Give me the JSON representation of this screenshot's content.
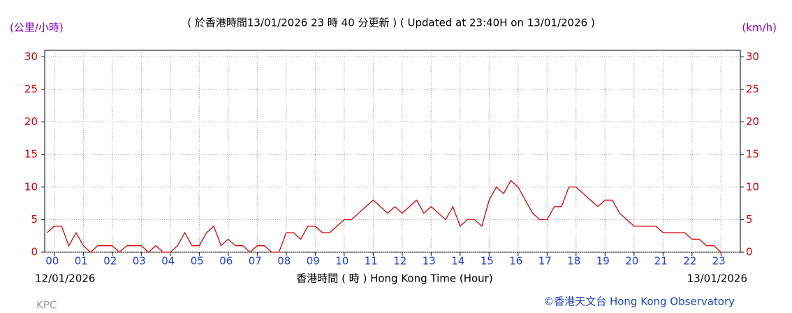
{
  "chart_data": {
    "type": "line",
    "title": "( 於香港時間13/01/2026 23 時 40 分更新 ) ( Updated at 23:40H on 13/01/2026 )",
    "y_label": "(公里/小時)",
    "y2_label": "(km/h)",
    "x_label": "香港時間 ( 時 )  Hong Kong Time (Hour)",
    "start_date": "12/01/2026",
    "end_date": "13/01/2026",
    "station": "KPC",
    "credit": "©香港天文台 Hong Kong Observatory",
    "grid": true,
    "xlim": [
      -0.333,
      23.667
    ],
    "ylim": [
      0,
      31
    ],
    "xticks": [
      {
        "value": 0,
        "label": "00"
      },
      {
        "value": 1,
        "label": "01"
      },
      {
        "value": 2,
        "label": "02"
      },
      {
        "value": 3,
        "label": "03"
      },
      {
        "value": 4,
        "label": "04"
      },
      {
        "value": 5,
        "label": "05"
      },
      {
        "value": 6,
        "label": "06"
      },
      {
        "value": 7,
        "label": "07"
      },
      {
        "value": 8,
        "label": "08"
      },
      {
        "value": 9,
        "label": "09"
      },
      {
        "value": 10,
        "label": "10"
      },
      {
        "value": 11,
        "label": "11"
      },
      {
        "value": 12,
        "label": "12"
      },
      {
        "value": 13,
        "label": "13"
      },
      {
        "value": 14,
        "label": "14"
      },
      {
        "value": 15,
        "label": "15"
      },
      {
        "value": 16,
        "label": "16"
      },
      {
        "value": 17,
        "label": "17"
      },
      {
        "value": 18,
        "label": "18"
      },
      {
        "value": 19,
        "label": "19"
      },
      {
        "value": 20,
        "label": "20"
      },
      {
        "value": 21,
        "label": "21"
      },
      {
        "value": 22,
        "label": "22"
      },
      {
        "value": 23,
        "label": "23"
      }
    ],
    "yticks": [
      0,
      5,
      10,
      15,
      20,
      25,
      30
    ],
    "x": [
      -0.25,
      0,
      0.25,
      0.5,
      0.75,
      1,
      1.25,
      1.5,
      1.75,
      2,
      2.25,
      2.5,
      2.75,
      3,
      3.25,
      3.5,
      3.75,
      4,
      4.25,
      4.5,
      4.75,
      5,
      5.25,
      5.5,
      5.75,
      6,
      6.25,
      6.5,
      6.75,
      7,
      7.25,
      7.5,
      7.75,
      8,
      8.25,
      8.5,
      8.75,
      9,
      9.25,
      9.5,
      9.75,
      10,
      10.25,
      10.5,
      10.75,
      11,
      11.25,
      11.5,
      11.75,
      12,
      12.25,
      12.5,
      12.75,
      13,
      13.25,
      13.5,
      13.75,
      14,
      14.25,
      14.5,
      14.75,
      15,
      15.25,
      15.5,
      15.75,
      16,
      16.25,
      16.5,
      16.75,
      17,
      17.25,
      17.5,
      17.75,
      18,
      18.25,
      18.5,
      18.75,
      19,
      19.25,
      19.5,
      19.75,
      20,
      20.25,
      20.5,
      20.75,
      21,
      21.25,
      21.5,
      21.75,
      22,
      22.25,
      22.5,
      22.75,
      23
    ],
    "series": [
      {
        "color": "#e00000",
        "values": [
          3,
          4,
          4,
          1,
          3,
          1,
          0,
          1,
          1,
          1,
          0,
          1,
          1,
          1,
          0,
          1,
          0,
          0,
          1,
          3,
          1,
          1,
          3,
          4,
          1,
          2,
          1,
          1,
          0,
          1,
          1,
          0,
          0,
          3,
          3,
          2,
          4,
          4,
          3,
          3,
          4,
          5,
          5,
          6,
          7,
          8,
          7,
          6,
          7,
          6,
          7,
          8,
          6,
          7,
          6,
          5,
          7,
          4,
          5,
          5,
          4,
          8,
          10,
          9,
          11,
          10,
          8,
          6,
          5,
          5,
          7,
          7,
          10,
          10,
          9,
          8,
          7,
          8,
          8,
          6,
          5,
          4,
          4,
          4,
          4,
          3,
          3,
          3,
          3,
          2,
          2,
          1,
          1,
          0
        ]
      }
    ]
  }
}
